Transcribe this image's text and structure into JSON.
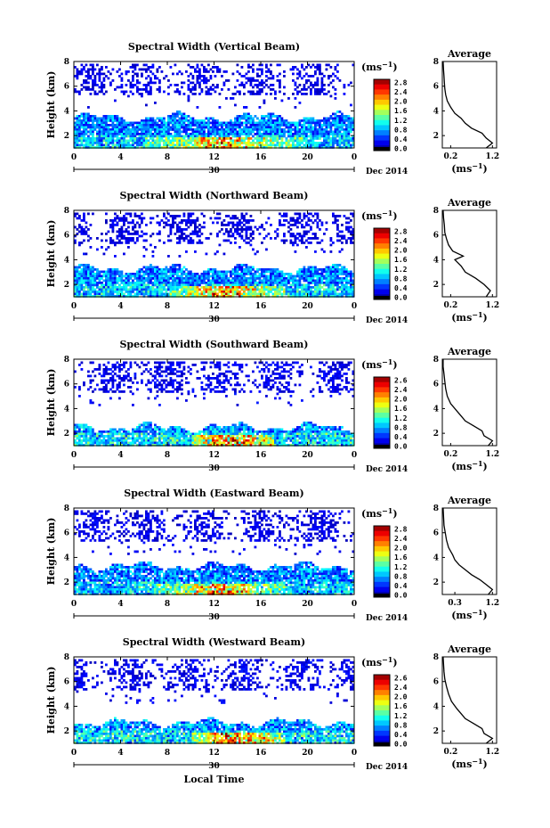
{
  "chart_data": [
    {
      "type": "heatmap",
      "title": "Spectral Width (Vertical Beam)",
      "ylabel": "Height (km)",
      "x_ticks": [
        "0",
        "4",
        "8",
        "12",
        "16",
        "20",
        "0"
      ],
      "y_ticks": [
        "2",
        "4",
        "6",
        "8"
      ],
      "xlim": [
        0,
        24
      ],
      "ylim": [
        1,
        8
      ],
      "date_tick": "30",
      "date_label": "Dec 2014",
      "colorbar": {
        "unit": "(ms",
        "exponent": "−1",
        "close": ")",
        "min": 0.0,
        "max": 2.8,
        "labels": [
          "2.8",
          "2.4",
          "2.0",
          "1.6",
          "1.2",
          "0.8",
          "0.4",
          "0.0"
        ]
      },
      "lower_layer_top_km": 3.6,
      "enhanced_window": [
        6,
        20
      ],
      "profile": {
        "title": "Average",
        "xlabel": "(ms",
        "xlabel_exp": "−1",
        "xlabel_close": ")",
        "x_ticks": [
          "0.2",
          "1.2"
        ],
        "y_ticks": [
          "2",
          "4",
          "6",
          "8"
        ],
        "xlim": [
          0,
          1.3
        ],
        "ylim": [
          1,
          8
        ],
        "points": [
          [
            1.05,
            1.0
          ],
          [
            1.2,
            1.4
          ],
          [
            1.05,
            1.8
          ],
          [
            0.95,
            2.2
          ],
          [
            0.7,
            2.6
          ],
          [
            0.55,
            3.0
          ],
          [
            0.45,
            3.4
          ],
          [
            0.3,
            3.8
          ],
          [
            0.2,
            4.3
          ],
          [
            0.12,
            4.8
          ],
          [
            0.08,
            5.3
          ],
          [
            0.06,
            5.8
          ],
          [
            0.05,
            6.3
          ],
          [
            0.04,
            6.8
          ],
          [
            0.03,
            7.3
          ],
          [
            0.02,
            8.0
          ]
        ]
      }
    },
    {
      "type": "heatmap",
      "title": "Spectral Width (Northward Beam)",
      "ylabel": "Height (km)",
      "x_ticks": [
        "0",
        "4",
        "8",
        "12",
        "16",
        "20",
        "0"
      ],
      "y_ticks": [
        "2",
        "4",
        "6",
        "8"
      ],
      "xlim": [
        0,
        24
      ],
      "ylim": [
        1,
        8
      ],
      "date_tick": "30",
      "date_label": "Dec 2014",
      "colorbar": {
        "unit": "(ms",
        "exponent": "−1",
        "close": ")",
        "min": 0.0,
        "max": 2.8,
        "labels": [
          "2.8",
          "2.4",
          "2.0",
          "1.6",
          "1.2",
          "0.8",
          "0.4",
          "0.0"
        ]
      },
      "lower_layer_top_km": 3.4,
      "enhanced_window": [
        8,
        18
      ],
      "profile": {
        "title": "Average",
        "xlabel": "(ms",
        "xlabel_exp": "−1",
        "xlabel_close": ")",
        "x_ticks": [
          "0.2",
          "1.2"
        ],
        "y_ticks": [
          "2",
          "4",
          "6",
          "8"
        ],
        "xlim": [
          0,
          1.3
        ],
        "ylim": [
          1,
          8
        ],
        "points": [
          [
            1.05,
            1.0
          ],
          [
            1.15,
            1.5
          ],
          [
            1.0,
            2.0
          ],
          [
            0.8,
            2.5
          ],
          [
            0.55,
            3.0
          ],
          [
            0.45,
            3.5
          ],
          [
            0.3,
            4.0
          ],
          [
            0.5,
            4.3
          ],
          [
            0.25,
            4.7
          ],
          [
            0.15,
            5.2
          ],
          [
            0.1,
            5.7
          ],
          [
            0.06,
            6.2
          ],
          [
            0.05,
            6.8
          ],
          [
            0.03,
            7.4
          ],
          [
            0.02,
            8.0
          ]
        ]
      }
    },
    {
      "type": "heatmap",
      "title": "Spectral Width (Southward Beam)",
      "ylabel": "Height (km)",
      "x_ticks": [
        "0",
        "4",
        "8",
        "12",
        "16",
        "20",
        "0"
      ],
      "y_ticks": [
        "2",
        "4",
        "6",
        "8"
      ],
      "xlim": [
        0,
        24
      ],
      "ylim": [
        1,
        8
      ],
      "date_tick": "30",
      "date_label": "Dec 2014",
      "colorbar": {
        "unit": "(ms",
        "exponent": "−1",
        "close": ")",
        "min": 0.0,
        "max": 2.6,
        "labels": [
          "2.6",
          "2.4",
          "2.0",
          "1.6",
          "1.2",
          "0.8",
          "0.4",
          "0.0"
        ]
      },
      "lower_layer_top_km": 2.6,
      "enhanced_window": [
        10,
        17
      ],
      "profile": {
        "title": "Average",
        "xlabel": "(ms",
        "xlabel_exp": "−1",
        "xlabel_close": ")",
        "x_ticks": [
          "0.2",
          "1.2"
        ],
        "y_ticks": [
          "2",
          "4",
          "6",
          "8"
        ],
        "xlim": [
          0,
          1.3
        ],
        "ylim": [
          1,
          8
        ],
        "points": [
          [
            1.1,
            1.0
          ],
          [
            1.2,
            1.4
          ],
          [
            1.0,
            1.8
          ],
          [
            0.95,
            2.2
          ],
          [
            0.75,
            2.6
          ],
          [
            0.55,
            3.0
          ],
          [
            0.45,
            3.4
          ],
          [
            0.35,
            3.8
          ],
          [
            0.2,
            4.4
          ],
          [
            0.12,
            5.0
          ],
          [
            0.08,
            5.6
          ],
          [
            0.06,
            6.2
          ],
          [
            0.04,
            6.8
          ],
          [
            0.02,
            7.4
          ],
          [
            0.02,
            8.0
          ]
        ]
      }
    },
    {
      "type": "heatmap",
      "title": "Spectral Width (Eastward Beam)",
      "ylabel": "Height (km)",
      "x_ticks": [
        "0",
        "4",
        "8",
        "12",
        "16",
        "20",
        "0"
      ],
      "y_ticks": [
        "2",
        "4",
        "6",
        "8"
      ],
      "xlim": [
        0,
        24
      ],
      "ylim": [
        1,
        8
      ],
      "date_tick": "30",
      "date_label": "Dec 2014",
      "colorbar": {
        "unit": "(ms",
        "exponent": "−1",
        "close": ")",
        "min": 0.0,
        "max": 2.8,
        "labels": [
          "2.8",
          "2.4",
          "2.0",
          "1.6",
          "1.2",
          "0.8",
          "0.4",
          "0.0"
        ]
      },
      "lower_layer_top_km": 3.4,
      "enhanced_window": [
        7,
        18
      ],
      "profile": {
        "title": "Average",
        "xlabel": "(ms",
        "xlabel_exp": "−1",
        "xlabel_close": ")",
        "x_ticks": [
          "0.3",
          "1.2"
        ],
        "y_ticks": [
          "2",
          "4",
          "6",
          "8"
        ],
        "xlim": [
          0,
          1.3
        ],
        "ylim": [
          1,
          8
        ],
        "points": [
          [
            1.1,
            1.0
          ],
          [
            1.2,
            1.4
          ],
          [
            1.05,
            1.8
          ],
          [
            0.9,
            2.2
          ],
          [
            0.7,
            2.6
          ],
          [
            0.55,
            3.0
          ],
          [
            0.4,
            3.4
          ],
          [
            0.3,
            3.8
          ],
          [
            0.25,
            4.2
          ],
          [
            0.15,
            4.8
          ],
          [
            0.1,
            5.4
          ],
          [
            0.07,
            6.0
          ],
          [
            0.04,
            6.6
          ],
          [
            0.03,
            7.3
          ],
          [
            0.02,
            8.0
          ]
        ]
      }
    },
    {
      "type": "heatmap",
      "title": "Spectral Width (Westward Beam)",
      "ylabel": "Height (km)",
      "x_ticks": [
        "0",
        "4",
        "8",
        "12",
        "16",
        "20",
        "0"
      ],
      "y_ticks": [
        "2",
        "4",
        "6",
        "8"
      ],
      "xlim": [
        0,
        24
      ],
      "ylim": [
        1,
        8
      ],
      "date_tick": "30",
      "date_label": "Dec 2014",
      "xlabel": "Local Time",
      "colorbar": {
        "unit": "(ms",
        "exponent": "−1",
        "close": ")",
        "min": 0.0,
        "max": 2.6,
        "labels": [
          "2.6",
          "2.4",
          "2.0",
          "1.6",
          "1.2",
          "0.8",
          "0.4",
          "0.0"
        ]
      },
      "lower_layer_top_km": 2.8,
      "enhanced_window": [
        10,
        18
      ],
      "profile": {
        "title": "Average",
        "xlabel": "(ms",
        "xlabel_exp": "−1",
        "xlabel_close": ")",
        "x_ticks": [
          "0.2",
          "1.2"
        ],
        "y_ticks": [
          "2",
          "4",
          "6",
          "8"
        ],
        "xlim": [
          0,
          1.3
        ],
        "ylim": [
          1,
          8
        ],
        "points": [
          [
            1.05,
            1.0
          ],
          [
            1.2,
            1.4
          ],
          [
            1.0,
            1.8
          ],
          [
            0.95,
            2.2
          ],
          [
            0.75,
            2.6
          ],
          [
            0.55,
            3.0
          ],
          [
            0.45,
            3.4
          ],
          [
            0.35,
            3.8
          ],
          [
            0.22,
            4.4
          ],
          [
            0.15,
            5.0
          ],
          [
            0.1,
            5.6
          ],
          [
            0.06,
            6.2
          ],
          [
            0.04,
            6.8
          ],
          [
            0.03,
            7.4
          ],
          [
            0.02,
            8.0
          ]
        ]
      }
    }
  ]
}
